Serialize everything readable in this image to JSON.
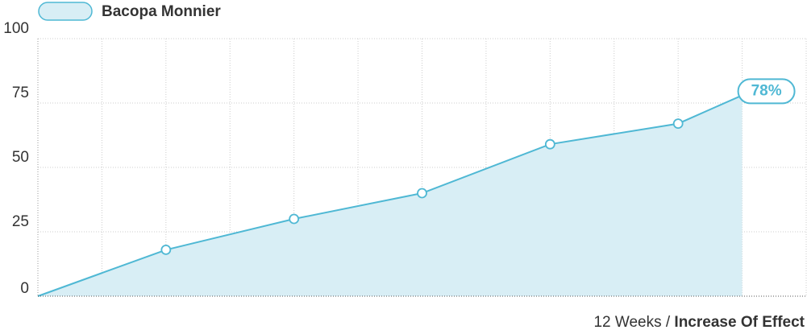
{
  "chart_data": {
    "type": "area",
    "series": [
      {
        "name": "Bacopa Monnier",
        "color": "#4fb8d4",
        "x": [
          0,
          2,
          4,
          6,
          8,
          10,
          11
        ],
        "values": [
          0,
          18,
          30,
          40,
          59,
          67,
          78
        ],
        "value_labels": [
          null,
          null,
          null,
          null,
          null,
          null,
          "78%"
        ]
      }
    ],
    "xlim": [
      0,
      12
    ],
    "ylim": [
      0,
      100
    ],
    "yticks": [
      0,
      25,
      50,
      75,
      100
    ],
    "grid": true,
    "x_label": [
      "12 Weeks /",
      "Increase Of Effect"
    ]
  }
}
